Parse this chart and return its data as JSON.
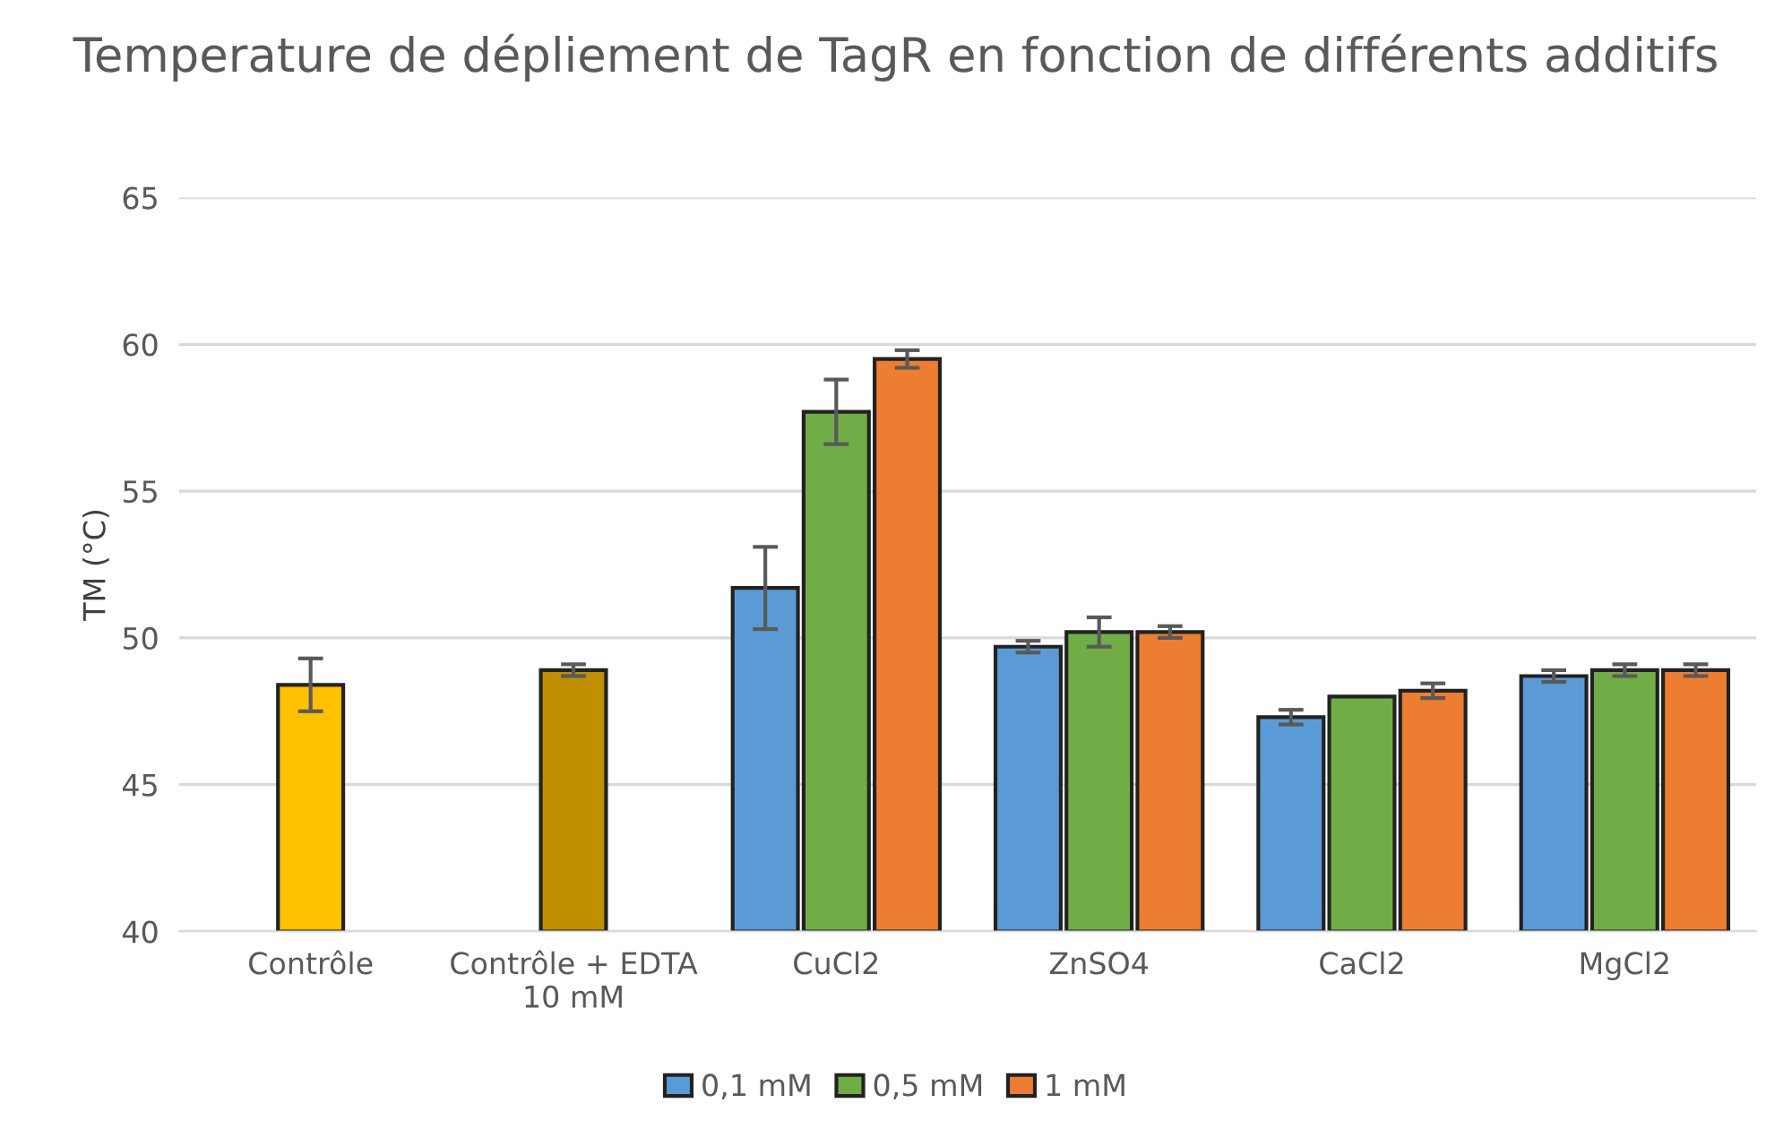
{
  "chart_data": {
    "type": "bar",
    "title": "Temperature de dépliement de TagR en fonction de différents additifs",
    "ylabel": "TM (°C)",
    "categories": [
      "Contrôle",
      "Contrôle + EDTA\n10 mM",
      "CuCl2",
      "ZnSO4",
      "CaCl2",
      "MgCl2"
    ],
    "series": [
      {
        "colors": [
          "#ffc000",
          "#bf8f00",
          null,
          null,
          null,
          null
        ],
        "values": [
          48.4,
          48.9,
          null,
          null,
          null,
          null
        ],
        "errors": [
          0.9,
          0.2,
          null,
          null,
          null,
          null
        ]
      },
      {
        "name": "0,1 mM",
        "color": "#5b9bd5",
        "values": [
          null,
          null,
          51.7,
          49.7,
          47.3,
          48.7
        ],
        "errors": [
          null,
          null,
          1.4,
          0.2,
          0.25,
          0.2
        ]
      },
      {
        "name": "0,5 mM",
        "color": "#70ad47",
        "values": [
          null,
          null,
          57.7,
          50.2,
          48.0,
          48.9
        ],
        "errors": [
          null,
          null,
          1.1,
          0.5,
          null,
          0.2
        ]
      },
      {
        "name": "1 mM",
        "color": "#ed7d31",
        "values": [
          null,
          null,
          59.5,
          50.2,
          48.2,
          48.9
        ],
        "errors": [
          null,
          null,
          0.3,
          0.2,
          0.25,
          0.2
        ]
      }
    ],
    "ylim": [
      40,
      65
    ],
    "yticks": [
      40,
      45,
      50,
      55,
      60,
      65
    ],
    "grid": "y",
    "legend": "bottom"
  }
}
